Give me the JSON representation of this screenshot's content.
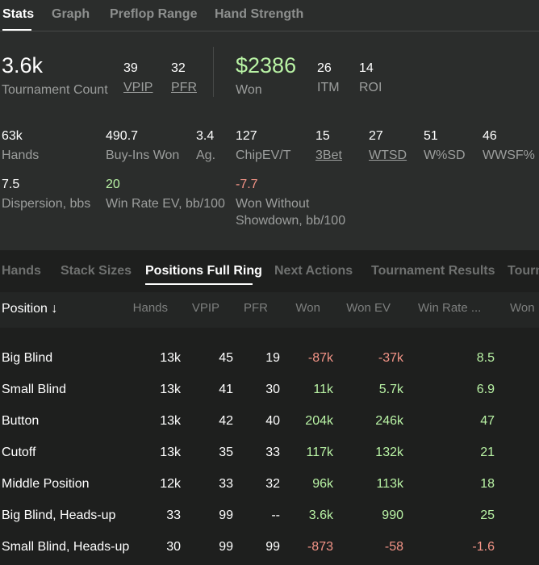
{
  "tabs": [
    "Stats",
    "Graph",
    "Preflop Range",
    "Hand Strength"
  ],
  "summary": {
    "tournament_count": {
      "value": "3.6k",
      "label": "Tournament Count"
    },
    "vpip": {
      "value": "39",
      "label": "VPIP"
    },
    "pfr": {
      "value": "32",
      "label": "PFR"
    },
    "won": {
      "value": "$2386",
      "label": "Won"
    },
    "itm": {
      "value": "26",
      "label": "ITM"
    },
    "roi": {
      "value": "14",
      "label": "ROI"
    }
  },
  "stats_row1": {
    "hands": {
      "value": "63k",
      "label": "Hands"
    },
    "buyins_won": {
      "value": "490.7",
      "label": "Buy-Ins Won"
    },
    "ag": {
      "value": "3.4",
      "label": "Ag."
    },
    "chipev": {
      "value": "127",
      "label": "ChipEV/T"
    },
    "threebet": {
      "value": "15",
      "label": "3Bet"
    },
    "wtsd": {
      "value": "27",
      "label": "WTSD"
    },
    "wsd": {
      "value": "51",
      "label": "W%SD"
    },
    "wwsf": {
      "value": "46",
      "label": "WWSF%"
    }
  },
  "stats_row2": {
    "dispersion": {
      "value": "7.5",
      "label": "Dispersion, bbs"
    },
    "winrate_ev": {
      "value": "20",
      "label": "Win Rate EV, bb/100"
    },
    "won_without_sd": {
      "value": "-7.7",
      "label_line1": "Won Without",
      "label_line2": "Showdown, bb/100"
    }
  },
  "sub_tabs": [
    "Hands",
    "Stack Sizes",
    "Positions Full Ring",
    "Next Actions",
    "Tournament Results",
    "Tourn"
  ],
  "table": {
    "columns": [
      "Position ↓",
      "Hands",
      "VPIP",
      "PFR",
      "Won",
      "Won EV",
      "Win Rate ...",
      "Won"
    ],
    "rows": [
      {
        "position": "Big Blind",
        "hands": "13k",
        "vpip": "45",
        "pfr": "19",
        "won": "-87k",
        "won_ev": "-37k",
        "win_rate": "8.5"
      },
      {
        "position": "Small Blind",
        "hands": "13k",
        "vpip": "41",
        "pfr": "30",
        "won": "11k",
        "won_ev": "5.7k",
        "win_rate": "6.9"
      },
      {
        "position": "Button",
        "hands": "13k",
        "vpip": "42",
        "pfr": "40",
        "won": "204k",
        "won_ev": "246k",
        "win_rate": "47"
      },
      {
        "position": "Cutoff",
        "hands": "13k",
        "vpip": "35",
        "pfr": "33",
        "won": "117k",
        "won_ev": "132k",
        "win_rate": "21"
      },
      {
        "position": "Middle Position",
        "hands": "12k",
        "vpip": "33",
        "pfr": "32",
        "won": "96k",
        "won_ev": "113k",
        "win_rate": "18"
      },
      {
        "position": "Big Blind, Heads-up",
        "hands": "33",
        "vpip": "99",
        "pfr": "--",
        "won": "3.6k",
        "won_ev": "990",
        "win_rate": "25"
      },
      {
        "position": "Small Blind, Heads-up",
        "hands": "30",
        "vpip": "99",
        "pfr": "99",
        "won": "-873",
        "won_ev": "-58",
        "win_rate": "-1.6"
      }
    ]
  },
  "colors": {
    "positive": "#b9f3a5",
    "negative": "#f39487",
    "background": "#2b2d2c",
    "table_background": "#1e1f1e"
  }
}
